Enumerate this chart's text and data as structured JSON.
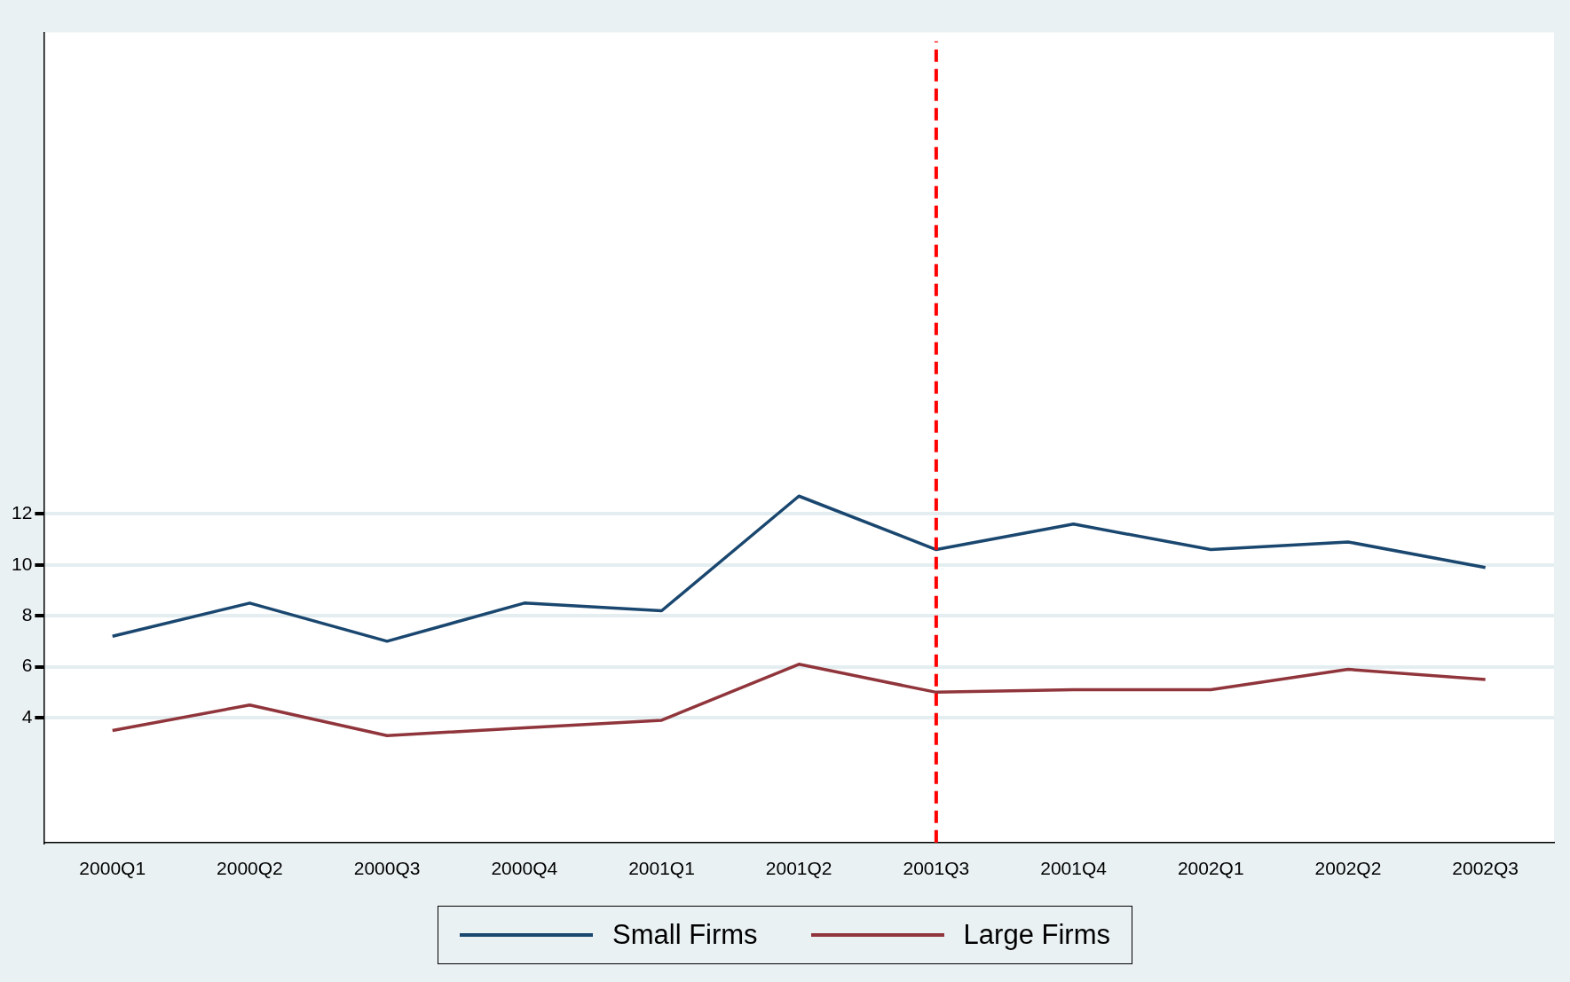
{
  "chart_data": {
    "type": "line",
    "categories": [
      "2000Q1",
      "2000Q2",
      "2000Q3",
      "2000Q4",
      "2001Q1",
      "2001Q2",
      "2001Q3",
      "2001Q4",
      "2002Q1",
      "2002Q2",
      "2002Q3"
    ],
    "series": [
      {
        "name": "Small Firms",
        "color": "#1a476f",
        "values": [
          7.2,
          8.5,
          7.0,
          8.5,
          8.2,
          12.7,
          10.6,
          11.6,
          10.6,
          10.9,
          9.9
        ]
      },
      {
        "name": "Large Firms",
        "color": "#90353b",
        "values": [
          3.5,
          4.5,
          3.3,
          3.6,
          3.9,
          6.1,
          5.0,
          5.1,
          5.1,
          5.9,
          5.5
        ]
      }
    ],
    "ylim": [
      -0.9,
      30.9
    ],
    "yticks": [
      4,
      6,
      8,
      10,
      12
    ],
    "grid": "y",
    "legend": "bottom",
    "marker": "none",
    "line_style": "solid",
    "ref_lines": [
      {
        "axis": "x",
        "value": "2001Q3",
        "color": "#ff0000",
        "line_style": "dashed"
      }
    ]
  }
}
